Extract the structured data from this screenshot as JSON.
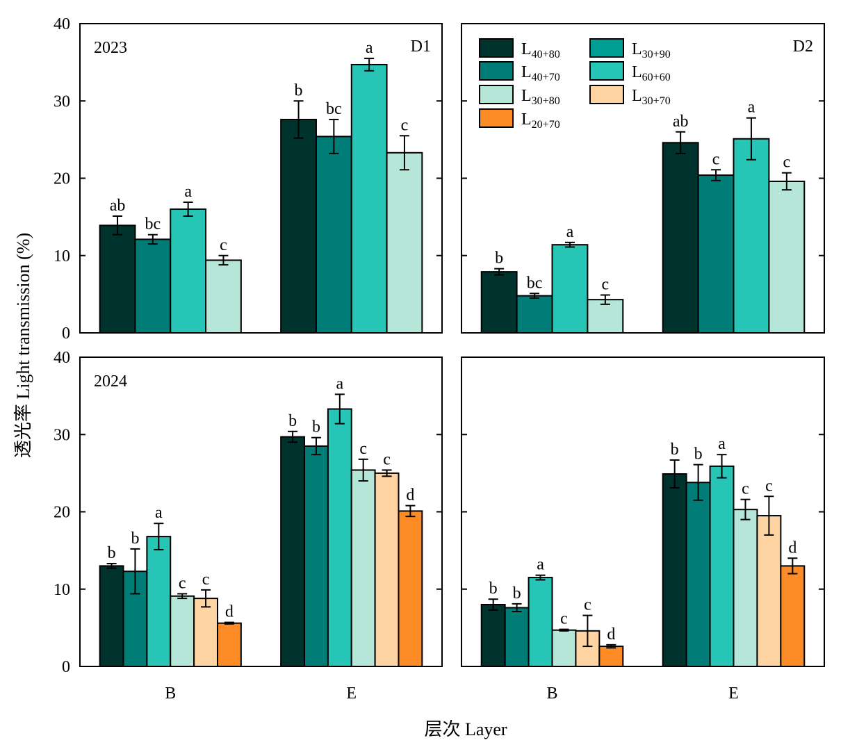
{
  "colors": {
    "L40+80": "#00332d",
    "L40+70": "#007d76",
    "L60+60": "#26c5b6",
    "L30+80": "#b5e6d8",
    "L30+90": "#009e93",
    "L30+70": "#ffd4a3",
    "L20+70": "#fd8c27"
  },
  "axis_labels": {
    "x": "层次 Layer",
    "y": "透光率 Light transmission (%)"
  },
  "legend": [
    {
      "key": "L40+80",
      "main": "L",
      "sub": "40+80"
    },
    {
      "key": "L30+90",
      "main": "L",
      "sub": "30+90"
    },
    {
      "key": "L40+70",
      "main": "L",
      "sub": "40+70"
    },
    {
      "key": "L60+60",
      "main": "L",
      "sub": "60+60"
    },
    {
      "key": "L30+80",
      "main": "L",
      "sub": "30+80"
    },
    {
      "key": "L30+70",
      "main": "L",
      "sub": "30+70"
    },
    {
      "key": "L20+70",
      "main": "L",
      "sub": "20+70"
    }
  ],
  "chart_data": [
    {
      "type": "bar",
      "year_label": "2023",
      "site_label": "D1",
      "categories": [
        "B",
        "E"
      ],
      "ylim": [
        0,
        40
      ],
      "yticks": [
        0,
        10,
        20,
        30,
        40
      ],
      "series": [
        {
          "key": "L40+80",
          "values": [
            13.9,
            27.6
          ],
          "errors": [
            1.2,
            2.4
          ],
          "letters": [
            "ab",
            "b"
          ]
        },
        {
          "key": "L40+70",
          "values": [
            12.1,
            25.4
          ],
          "errors": [
            0.6,
            2.2
          ],
          "letters": [
            "bc",
            "bc"
          ]
        },
        {
          "key": "L60+60",
          "values": [
            16.0,
            34.7
          ],
          "errors": [
            0.9,
            0.8
          ],
          "letters": [
            "a",
            "a"
          ]
        },
        {
          "key": "L30+80",
          "values": [
            9.4,
            23.3
          ],
          "errors": [
            0.6,
            2.2
          ],
          "letters": [
            "c",
            "c"
          ]
        }
      ]
    },
    {
      "type": "bar",
      "year_label": "",
      "site_label": "D2",
      "categories": [
        "B",
        "E"
      ],
      "ylim": [
        0,
        40
      ],
      "yticks": [
        0,
        10,
        20,
        30,
        40
      ],
      "series": [
        {
          "key": "L40+80",
          "values": [
            7.9,
            24.6
          ],
          "errors": [
            0.4,
            1.4
          ],
          "letters": [
            "b",
            "ab"
          ]
        },
        {
          "key": "L40+70",
          "values": [
            4.8,
            20.4
          ],
          "errors": [
            0.3,
            0.7
          ],
          "letters": [
            "bc",
            "c"
          ]
        },
        {
          "key": "L60+60",
          "values": [
            11.4,
            25.1
          ],
          "errors": [
            0.3,
            2.7
          ],
          "letters": [
            "a",
            "a"
          ]
        },
        {
          "key": "L30+80",
          "values": [
            4.3,
            19.6
          ],
          "errors": [
            0.6,
            1.1
          ],
          "letters": [
            "c",
            "c"
          ]
        }
      ]
    },
    {
      "type": "bar",
      "year_label": "2024",
      "site_label": "",
      "categories": [
        "B",
        "E"
      ],
      "ylim": [
        0,
        40
      ],
      "yticks": [
        0,
        10,
        20,
        30,
        40
      ],
      "series": [
        {
          "key": "L40+80",
          "values": [
            13.0,
            29.7
          ],
          "errors": [
            0.3,
            0.7
          ],
          "letters": [
            "b",
            "b"
          ]
        },
        {
          "key": "L40+70",
          "values": [
            12.3,
            28.5
          ],
          "errors": [
            2.9,
            1.1
          ],
          "letters": [
            "b",
            "b"
          ]
        },
        {
          "key": "L60+60",
          "values": [
            16.8,
            33.3
          ],
          "errors": [
            1.7,
            1.9
          ],
          "letters": [
            "a",
            "a"
          ]
        },
        {
          "key": "L30+80",
          "values": [
            9.1,
            25.4
          ],
          "errors": [
            0.3,
            1.4
          ],
          "letters": [
            "c",
            "c"
          ]
        },
        {
          "key": "L30+70",
          "values": [
            8.8,
            25.0
          ],
          "errors": [
            1.1,
            0.4
          ],
          "letters": [
            "c",
            "c"
          ]
        },
        {
          "key": "L20+70",
          "values": [
            5.6,
            20.1
          ],
          "errors": [
            0.1,
            0.7
          ],
          "letters": [
            "d",
            "d"
          ]
        }
      ]
    },
    {
      "type": "bar",
      "year_label": "",
      "site_label": "",
      "categories": [
        "B",
        "E"
      ],
      "ylim": [
        0,
        40
      ],
      "yticks": [
        0,
        10,
        20,
        30,
        40
      ],
      "series": [
        {
          "key": "L40+80",
          "values": [
            8.0,
            24.9
          ],
          "errors": [
            0.7,
            1.8
          ],
          "letters": [
            "b",
            "b"
          ]
        },
        {
          "key": "L40+70",
          "values": [
            7.6,
            23.8
          ],
          "errors": [
            0.5,
            2.3
          ],
          "letters": [
            "b",
            "b"
          ]
        },
        {
          "key": "L60+60",
          "values": [
            11.5,
            25.9
          ],
          "errors": [
            0.3,
            1.5
          ],
          "letters": [
            "a",
            "a"
          ]
        },
        {
          "key": "L30+80",
          "values": [
            4.7,
            20.3
          ],
          "errors": [
            0.1,
            1.3
          ],
          "letters": [
            "c",
            "c"
          ]
        },
        {
          "key": "L30+70",
          "values": [
            4.6,
            19.5
          ],
          "errors": [
            2.0,
            2.5
          ],
          "letters": [
            "c",
            "c"
          ]
        },
        {
          "key": "L20+70",
          "values": [
            2.6,
            13.0
          ],
          "errors": [
            0.2,
            1.0
          ],
          "letters": [
            "d",
            "d"
          ]
        }
      ]
    }
  ]
}
